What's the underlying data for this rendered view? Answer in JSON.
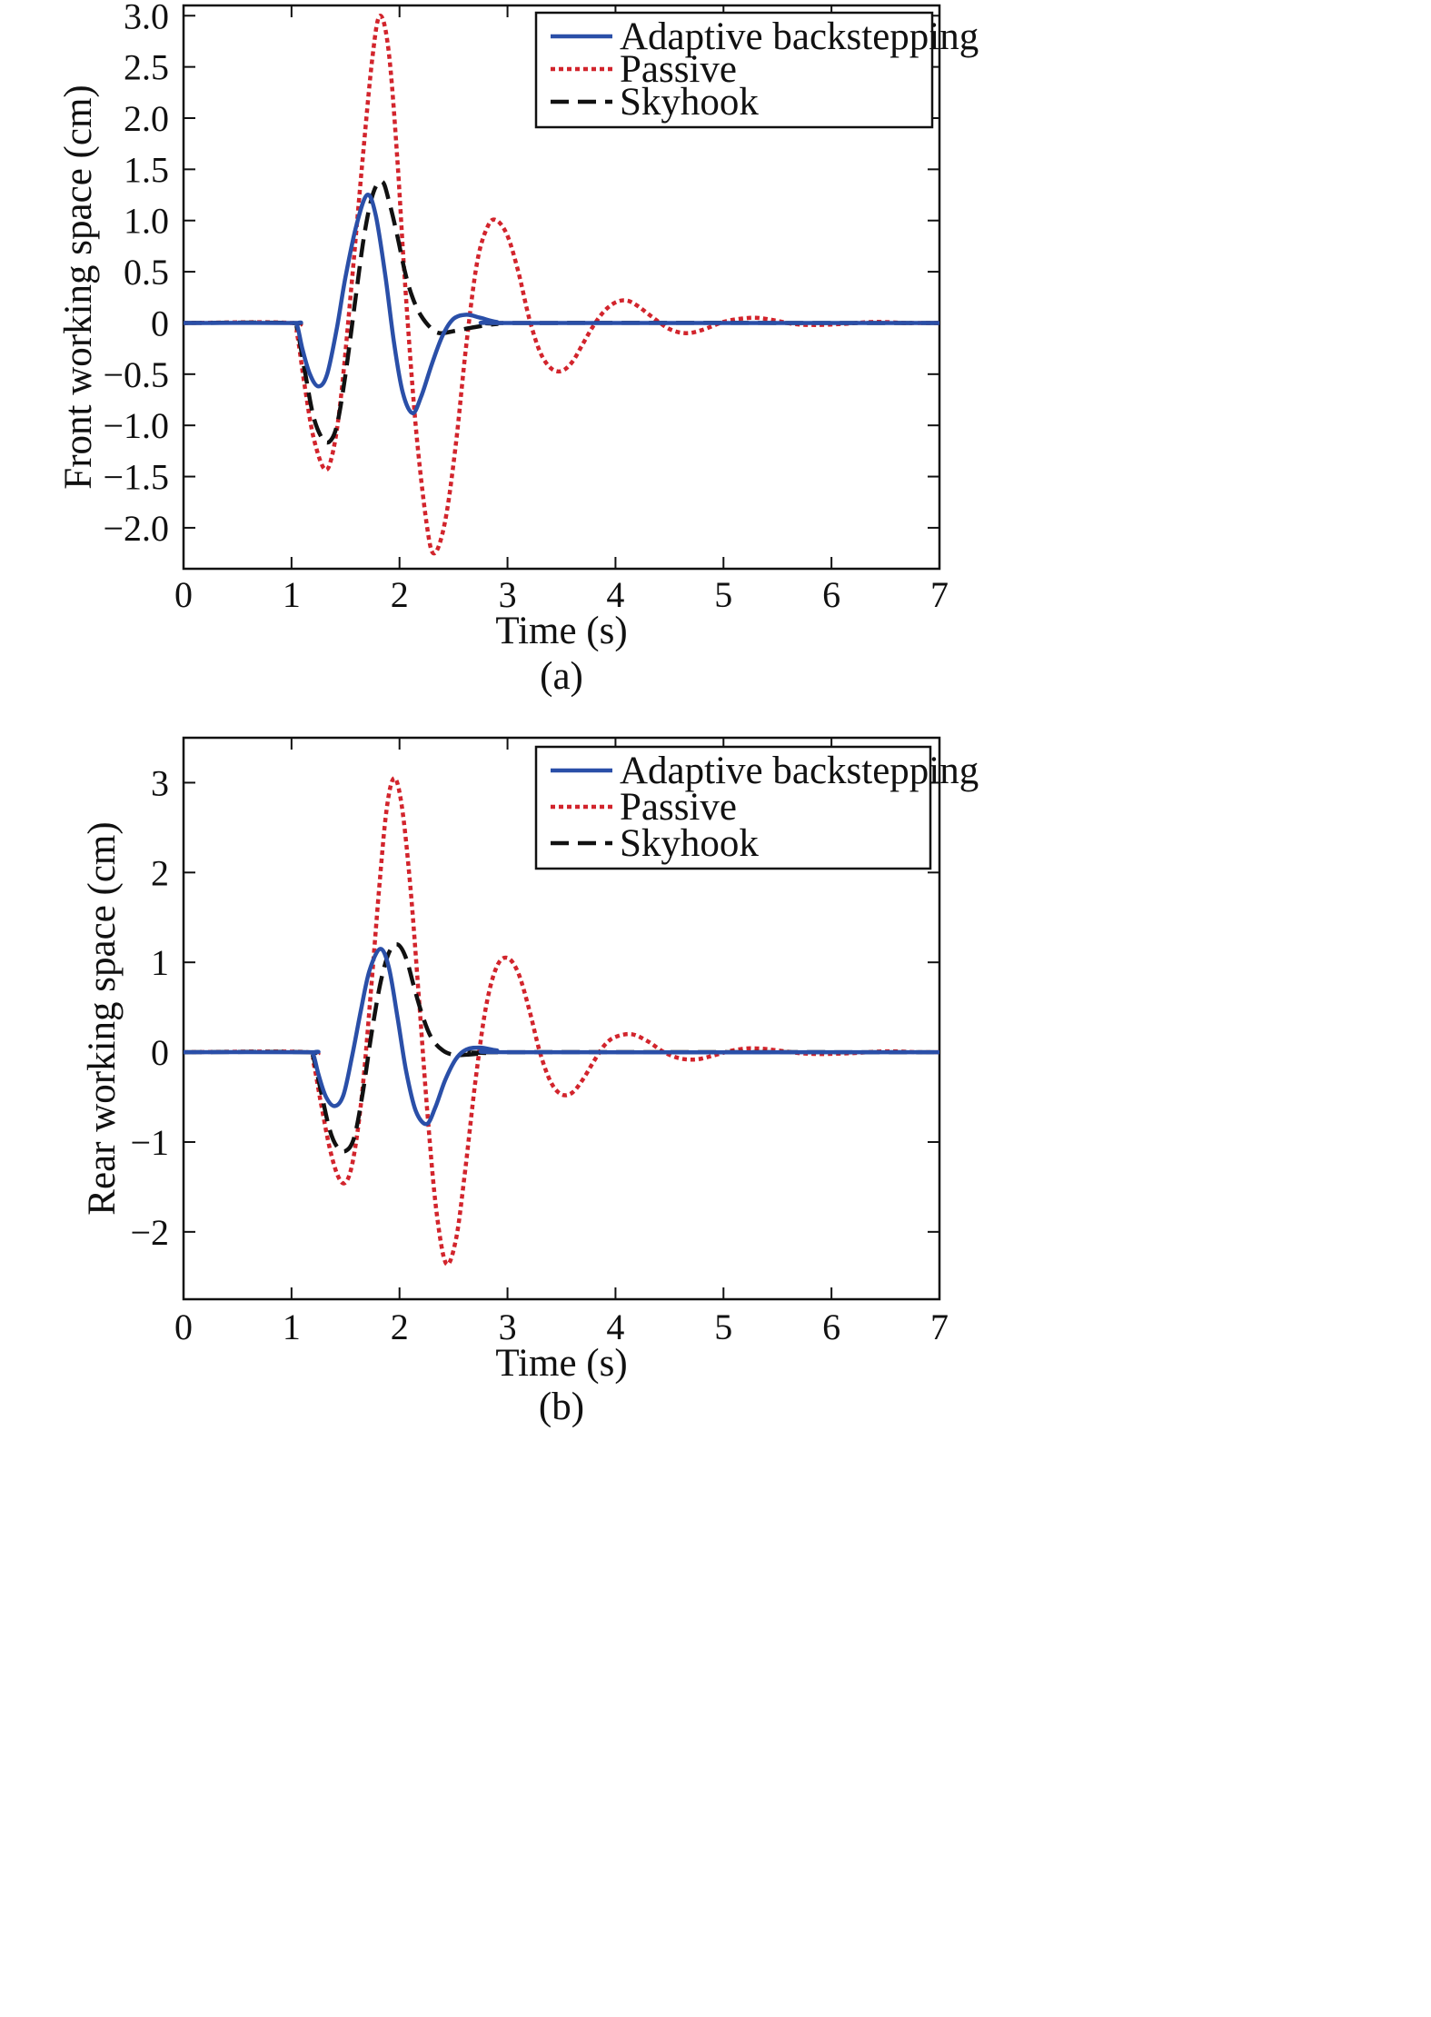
{
  "colors": {
    "adaptive": "#2a4fa8",
    "passive": "#d2242c",
    "skyhook": "#111111",
    "axis": "#111111"
  },
  "chart_data": [
    {
      "type": "line",
      "caption": "(a)",
      "xlabel": "Time (s)",
      "ylabel": "Front working space (cm)",
      "xlim": [
        0,
        7
      ],
      "ylim": [
        -2.4,
        3.1
      ],
      "xticks": [
        0,
        1,
        2,
        3,
        4,
        5,
        6,
        7
      ],
      "xtick_labels": [
        "0",
        "1",
        "2",
        "3",
        "4",
        "5",
        "6",
        "7"
      ],
      "yticks": [
        3.0,
        2.5,
        2.0,
        1.5,
        1.0,
        0.5,
        0,
        -0.5,
        -1.0,
        -1.5,
        -2.0
      ],
      "ytick_labels": [
        "3.0",
        "2.5",
        "2.0",
        "1.5",
        "1.0",
        "0.5",
        "0",
        "−0.5",
        "−1.0",
        "−1.5",
        "−2.0"
      ],
      "grid": false,
      "legend_position": "top-right",
      "series": [
        {
          "name": "Adaptive backstepping",
          "style": "solid",
          "points": [
            [
              0,
              0
            ],
            [
              1.0,
              0
            ],
            [
              1.05,
              -0.02
            ],
            [
              1.1,
              -0.25
            ],
            [
              1.17,
              -0.5
            ],
            [
              1.25,
              -0.62
            ],
            [
              1.33,
              -0.5
            ],
            [
              1.42,
              -0.05
            ],
            [
              1.5,
              0.45
            ],
            [
              1.6,
              0.95
            ],
            [
              1.7,
              1.25
            ],
            [
              1.78,
              1.05
            ],
            [
              1.87,
              0.45
            ],
            [
              1.95,
              -0.2
            ],
            [
              2.03,
              -0.68
            ],
            [
              2.12,
              -0.88
            ],
            [
              2.2,
              -0.72
            ],
            [
              2.3,
              -0.4
            ],
            [
              2.4,
              -0.12
            ],
            [
              2.5,
              0.04
            ],
            [
              2.62,
              0.08
            ],
            [
              2.75,
              0.05
            ],
            [
              2.9,
              0.01
            ],
            [
              3.1,
              0
            ],
            [
              7.0,
              0
            ]
          ]
        },
        {
          "name": "Passive",
          "style": "dotted",
          "points": [
            [
              0,
              0
            ],
            [
              1.0,
              0
            ],
            [
              1.05,
              -0.1
            ],
            [
              1.12,
              -0.6
            ],
            [
              1.2,
              -1.1
            ],
            [
              1.3,
              -1.42
            ],
            [
              1.37,
              -1.32
            ],
            [
              1.45,
              -0.8
            ],
            [
              1.55,
              0.3
            ],
            [
              1.65,
              1.5
            ],
            [
              1.75,
              2.6
            ],
            [
              1.82,
              3.0
            ],
            [
              1.9,
              2.65
            ],
            [
              1.98,
              1.6
            ],
            [
              2.05,
              0.4
            ],
            [
              2.15,
              -1.0
            ],
            [
              2.25,
              -1.95
            ],
            [
              2.32,
              -2.25
            ],
            [
              2.42,
              -1.95
            ],
            [
              2.52,
              -1.2
            ],
            [
              2.62,
              -0.2
            ],
            [
              2.72,
              0.6
            ],
            [
              2.82,
              0.95
            ],
            [
              2.9,
              1.0
            ],
            [
              3.0,
              0.85
            ],
            [
              3.1,
              0.5
            ],
            [
              3.2,
              0.05
            ],
            [
              3.3,
              -0.28
            ],
            [
              3.4,
              -0.44
            ],
            [
              3.5,
              -0.47
            ],
            [
              3.6,
              -0.38
            ],
            [
              3.7,
              -0.2
            ],
            [
              3.8,
              -0.02
            ],
            [
              3.9,
              0.12
            ],
            [
              4.0,
              0.2
            ],
            [
              4.1,
              0.22
            ],
            [
              4.2,
              0.17
            ],
            [
              4.35,
              0.05
            ],
            [
              4.5,
              -0.06
            ],
            [
              4.65,
              -0.1
            ],
            [
              4.8,
              -0.07
            ],
            [
              5.0,
              0.01
            ],
            [
              5.15,
              0.04
            ],
            [
              5.3,
              0.05
            ],
            [
              5.45,
              0.03
            ],
            [
              5.65,
              -0.01
            ],
            [
              5.85,
              -0.02
            ],
            [
              6.1,
              -0.01
            ],
            [
              6.4,
              0.01
            ],
            [
              6.7,
              0
            ],
            [
              7.0,
              0
            ]
          ]
        },
        {
          "name": "Skyhook",
          "style": "dashed",
          "points": [
            [
              0,
              0
            ],
            [
              1.0,
              0
            ],
            [
              1.05,
              -0.05
            ],
            [
              1.12,
              -0.45
            ],
            [
              1.2,
              -0.9
            ],
            [
              1.28,
              -1.12
            ],
            [
              1.35,
              -1.16
            ],
            [
              1.42,
              -1.0
            ],
            [
              1.5,
              -0.5
            ],
            [
              1.6,
              0.3
            ],
            [
              1.68,
              0.9
            ],
            [
              1.76,
              1.28
            ],
            [
              1.84,
              1.38
            ],
            [
              1.9,
              1.2
            ],
            [
              1.98,
              0.85
            ],
            [
              2.05,
              0.5
            ],
            [
              2.12,
              0.25
            ],
            [
              2.2,
              0.07
            ],
            [
              2.3,
              -0.06
            ],
            [
              2.38,
              -0.1
            ],
            [
              2.5,
              -0.08
            ],
            [
              2.7,
              -0.04
            ],
            [
              2.9,
              -0.01
            ],
            [
              3.1,
              0
            ],
            [
              7.0,
              0
            ]
          ]
        }
      ]
    },
    {
      "type": "line",
      "caption": "(b)",
      "xlabel": "Time (s)",
      "ylabel": "Rear working space (cm)",
      "xlim": [
        0,
        7
      ],
      "ylim": [
        -2.75,
        3.5
      ],
      "xticks": [
        0,
        1,
        2,
        3,
        4,
        5,
        6,
        7
      ],
      "xtick_labels": [
        "0",
        "1",
        "2",
        "3",
        "4",
        "5",
        "6",
        "7"
      ],
      "yticks": [
        3,
        2,
        1,
        0,
        -1,
        -2
      ],
      "ytick_labels": [
        "3",
        "2",
        "1",
        "0",
        "−1",
        "−2"
      ],
      "grid": false,
      "legend_position": "top-right",
      "series": [
        {
          "name": "Adaptive backstepping",
          "style": "solid",
          "points": [
            [
              0,
              0
            ],
            [
              1.15,
              0
            ],
            [
              1.2,
              -0.02
            ],
            [
              1.25,
              -0.25
            ],
            [
              1.32,
              -0.5
            ],
            [
              1.4,
              -0.6
            ],
            [
              1.48,
              -0.48
            ],
            [
              1.56,
              -0.05
            ],
            [
              1.64,
              0.45
            ],
            [
              1.72,
              0.9
            ],
            [
              1.82,
              1.15
            ],
            [
              1.9,
              0.95
            ],
            [
              1.98,
              0.4
            ],
            [
              2.06,
              -0.2
            ],
            [
              2.15,
              -0.65
            ],
            [
              2.25,
              -0.8
            ],
            [
              2.33,
              -0.62
            ],
            [
              2.42,
              -0.32
            ],
            [
              2.52,
              -0.08
            ],
            [
              2.62,
              0.03
            ],
            [
              2.75,
              0.05
            ],
            [
              2.9,
              0.02
            ],
            [
              3.1,
              0
            ],
            [
              7.0,
              0
            ]
          ]
        },
        {
          "name": "Passive",
          "style": "dotted",
          "points": [
            [
              0,
              0
            ],
            [
              1.15,
              0
            ],
            [
              1.2,
              -0.1
            ],
            [
              1.27,
              -0.55
            ],
            [
              1.35,
              -1.05
            ],
            [
              1.43,
              -1.38
            ],
            [
              1.5,
              -1.45
            ],
            [
              1.57,
              -1.2
            ],
            [
              1.65,
              -0.5
            ],
            [
              1.73,
              0.6
            ],
            [
              1.81,
              1.8
            ],
            [
              1.88,
              2.7
            ],
            [
              1.95,
              3.05
            ],
            [
              2.02,
              2.75
            ],
            [
              2.1,
              1.85
            ],
            [
              2.18,
              0.6
            ],
            [
              2.26,
              -0.7
            ],
            [
              2.34,
              -1.75
            ],
            [
              2.43,
              -2.35
            ],
            [
              2.52,
              -2.1
            ],
            [
              2.6,
              -1.4
            ],
            [
              2.7,
              -0.35
            ],
            [
              2.8,
              0.5
            ],
            [
              2.9,
              0.95
            ],
            [
              3.0,
              1.05
            ],
            [
              3.1,
              0.88
            ],
            [
              3.2,
              0.48
            ],
            [
              3.3,
              0.0
            ],
            [
              3.4,
              -0.33
            ],
            [
              3.5,
              -0.47
            ],
            [
              3.6,
              -0.45
            ],
            [
              3.7,
              -0.3
            ],
            [
              3.8,
              -0.1
            ],
            [
              3.9,
              0.08
            ],
            [
              4.0,
              0.17
            ],
            [
              4.15,
              0.2
            ],
            [
              4.3,
              0.12
            ],
            [
              4.45,
              0.0
            ],
            [
              4.6,
              -0.07
            ],
            [
              4.75,
              -0.08
            ],
            [
              4.9,
              -0.04
            ],
            [
              5.05,
              0.01
            ],
            [
              5.2,
              0.04
            ],
            [
              5.35,
              0.04
            ],
            [
              5.5,
              0.02
            ],
            [
              5.7,
              -0.01
            ],
            [
              5.9,
              -0.02
            ],
            [
              6.2,
              -0.01
            ],
            [
              6.5,
              0.01
            ],
            [
              6.8,
              0
            ],
            [
              7.0,
              0
            ]
          ]
        },
        {
          "name": "Skyhook",
          "style": "dashed",
          "points": [
            [
              0,
              0
            ],
            [
              1.15,
              0
            ],
            [
              1.2,
              -0.05
            ],
            [
              1.27,
              -0.42
            ],
            [
              1.35,
              -0.85
            ],
            [
              1.42,
              -1.05
            ],
            [
              1.5,
              -1.1
            ],
            [
              1.58,
              -0.95
            ],
            [
              1.66,
              -0.45
            ],
            [
              1.74,
              0.2
            ],
            [
              1.82,
              0.75
            ],
            [
              1.9,
              1.1
            ],
            [
              1.98,
              1.2
            ],
            [
              2.06,
              1.05
            ],
            [
              2.14,
              0.7
            ],
            [
              2.22,
              0.38
            ],
            [
              2.3,
              0.15
            ],
            [
              2.4,
              0.02
            ],
            [
              2.5,
              -0.03
            ],
            [
              2.6,
              -0.03
            ],
            [
              2.8,
              -0.01
            ],
            [
              3.0,
              0
            ],
            [
              7.0,
              0
            ]
          ]
        }
      ]
    }
  ]
}
